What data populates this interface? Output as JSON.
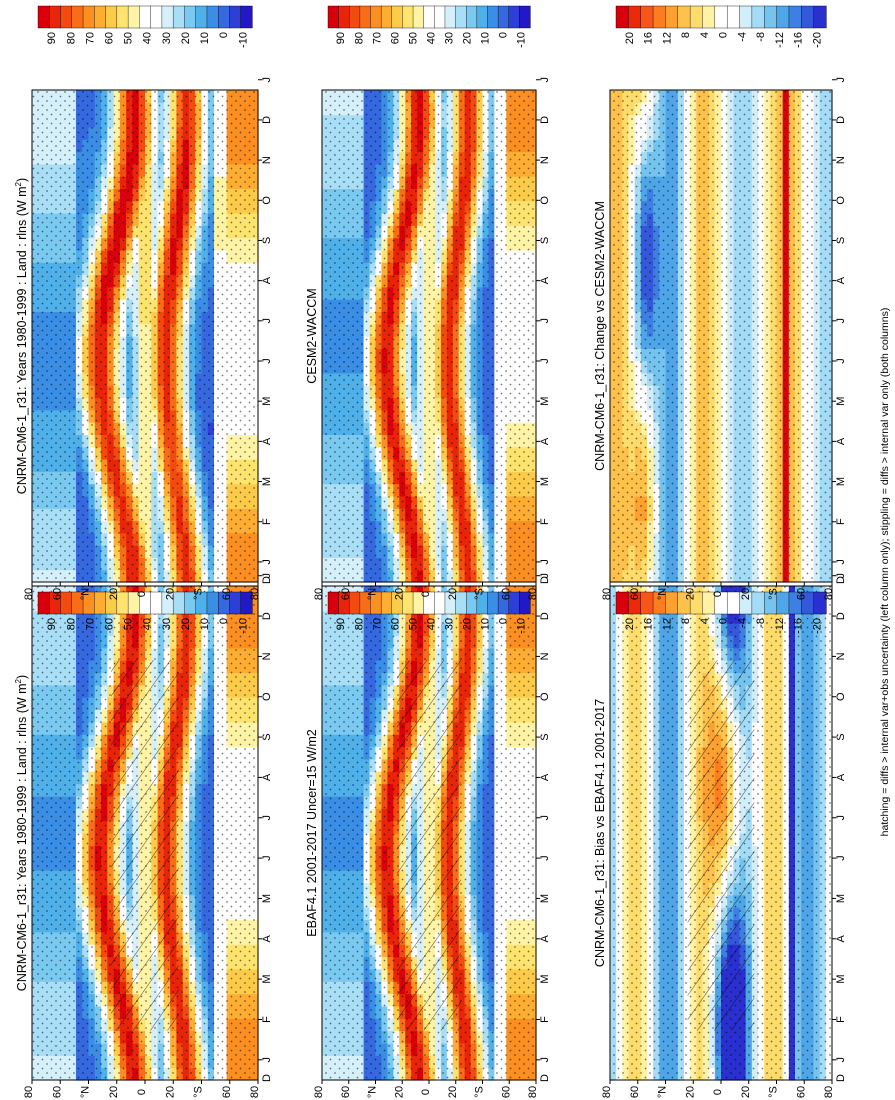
{
  "footnote": "hatching = diffs > internal var+obs uncertainty (left column only); stippling = diffs > internal var only (both columns)",
  "palettes": {
    "abs": [
      "#d9000c",
      "#e8250a",
      "#f24b10",
      "#f86e18",
      "#fb8f22",
      "#fdae32",
      "#fdcb4a",
      "#fee46e",
      "#fff4a6",
      "#ffffff",
      "#ffffff",
      "#d6f0fb",
      "#a9def7",
      "#79c9f1",
      "#4fb0ea",
      "#3a8ee6",
      "#3668e0",
      "#2d3fd6",
      "#2318c8"
    ],
    "diff": [
      "#d9000c",
      "#ea2a0b",
      "#f6561a",
      "#fb7d20",
      "#fca131",
      "#fec14b",
      "#fedc6c",
      "#fff2a4",
      "#ffffff",
      "#ffffff",
      "#d2eefb",
      "#a4dbf6",
      "#74c4ef",
      "#4ea6e9",
      "#3d7fe3",
      "#3558da",
      "#2a30cf"
    ]
  },
  "chart_data": [
    {
      "type": "heatmap",
      "title": "CNRM-CM6-1_r31: Years 1980-1999 : Land : rlns (W m",
      "title_sup": "2",
      "title_tail": ")",
      "field": "climatology",
      "x_ticks": [
        "J",
        "F",
        "M",
        "A",
        "M",
        "J",
        "J",
        "A",
        "S",
        "O",
        "N",
        "D",
        "J"
      ],
      "y_ticks": [
        "80",
        "60",
        "°N",
        "20",
        "0",
        "20",
        "°S",
        "60",
        "80"
      ],
      "x_edge": "D",
      "hatching": true,
      "colorbar": {
        "labels": [
          "90",
          "80",
          "70",
          "60",
          "50",
          "40",
          "30",
          "20",
          "10",
          "0",
          "-10"
        ],
        "range": [
          -15,
          100
        ]
      }
    },
    {
      "type": "heatmap",
      "title": "CNRM-CM6-1_r31: Years 1980-1999 : Land : rlns (W m",
      "title_sup": "2",
      "title_tail": ")",
      "field": "climatology",
      "x_ticks": [
        "J",
        "F",
        "M",
        "A",
        "M",
        "J",
        "J",
        "A",
        "S",
        "O",
        "N",
        "D",
        "J"
      ],
      "y_ticks": [
        "80",
        "60",
        "°N",
        "20",
        "0",
        "20",
        "°S",
        "60",
        "80"
      ],
      "x_edge": "D",
      "hatching": false,
      "colorbar": {
        "labels": [
          "90",
          "80",
          "70",
          "60",
          "50",
          "40",
          "30",
          "20",
          "10",
          "0",
          "-10"
        ],
        "range": [
          -15,
          100
        ]
      }
    },
    {
      "type": "heatmap",
      "title": "EBAF4.1 2001-2017 Uncer=15 W/m2",
      "title_sup": "",
      "title_tail": "",
      "field": "climatology",
      "x_ticks": [
        "J",
        "F",
        "M",
        "A",
        "M",
        "J",
        "J",
        "A",
        "S",
        "O",
        "N",
        "D",
        "J"
      ],
      "y_ticks": [
        "80",
        "60",
        "°N",
        "20",
        "0",
        "20",
        "°S",
        "60",
        "80"
      ],
      "x_edge": "D",
      "hatching": true,
      "colorbar": {
        "labels": [
          "90",
          "80",
          "70",
          "60",
          "50",
          "40",
          "30",
          "20",
          "10",
          "0",
          "-10"
        ],
        "range": [
          -15,
          100
        ]
      }
    },
    {
      "type": "heatmap",
      "title": "CESM2-WACCM",
      "title_sup": "",
      "title_tail": "",
      "field": "climatology",
      "x_ticks": [
        "J",
        "F",
        "M",
        "A",
        "M",
        "J",
        "J",
        "A",
        "S",
        "O",
        "N",
        "D",
        "J"
      ],
      "y_ticks": [
        "80",
        "60",
        "°N",
        "20",
        "0",
        "20",
        "°S",
        "60",
        "80"
      ],
      "x_edge": "D",
      "hatching": false,
      "colorbar": {
        "labels": [
          "90",
          "80",
          "70",
          "60",
          "50",
          "40",
          "30",
          "20",
          "10",
          "0",
          "-10"
        ],
        "range": [
          -15,
          100
        ]
      }
    },
    {
      "type": "heatmap",
      "title": "CNRM-CM6-1_r31: Bias vs EBAF4.1 2001-2017",
      "title_sup": "",
      "title_tail": "",
      "field": "difference",
      "x_ticks": [
        "J",
        "F",
        "M",
        "A",
        "M",
        "J",
        "J",
        "A",
        "S",
        "O",
        "N",
        "D",
        "J"
      ],
      "y_ticks": [
        "80",
        "60",
        "°N",
        "20",
        "0",
        "20",
        "°S",
        "60",
        "80"
      ],
      "x_edge": "D",
      "hatching": true,
      "colorbar": {
        "labels": [
          "20",
          "16",
          "12",
          "8",
          "4",
          "0",
          "-4",
          "-8",
          "-12",
          "-16",
          "-20"
        ],
        "range": [
          -22,
          22
        ]
      }
    },
    {
      "type": "heatmap",
      "title": "CNRM-CM6-1_r31: Change vs CESM2-WACCM",
      "title_sup": "",
      "title_tail": "",
      "field": "difference",
      "x_ticks": [
        "J",
        "F",
        "M",
        "A",
        "M",
        "J",
        "J",
        "A",
        "S",
        "O",
        "N",
        "D",
        "J"
      ],
      "y_ticks": [
        "80",
        "60",
        "°N",
        "20",
        "0",
        "20",
        "°S",
        "60",
        "80"
      ],
      "x_edge": "D",
      "hatching": false,
      "colorbar": {
        "labels": [
          "20",
          "16",
          "12",
          "8",
          "4",
          "0",
          "-4",
          "-8",
          "-12",
          "-16",
          "-20"
        ],
        "range": [
          -22,
          22
        ]
      }
    }
  ]
}
